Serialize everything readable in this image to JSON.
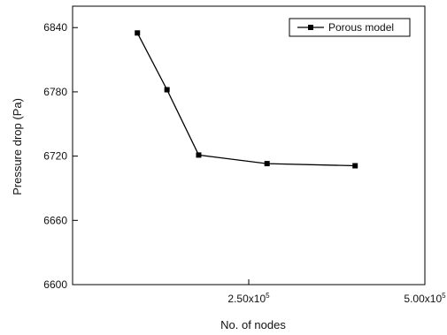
{
  "chart_data": {
    "type": "line",
    "xlabel": "No. of nodes",
    "ylabel": "Pressure drop (Pa)",
    "xlim": [
      0,
      500000
    ],
    "ylim": [
      6600,
      6860
    ],
    "x_ticks": [
      {
        "value": 250000,
        "mantissa": "2.50x10",
        "exp": "5"
      },
      {
        "value": 500000,
        "mantissa": "5.00x10",
        "exp": "5"
      }
    ],
    "y_ticks": [
      {
        "value": 6600,
        "label": "6600"
      },
      {
        "value": 6660,
        "label": "6660"
      },
      {
        "value": 6720,
        "label": "6720"
      },
      {
        "value": 6780,
        "label": "6780"
      },
      {
        "value": 6840,
        "label": "6840"
      }
    ],
    "legend_position": "top-right",
    "grid": false,
    "series": [
      {
        "name": "Porous model",
        "color": "#000000",
        "marker": "square",
        "x": [
          92000,
          134000,
          179000,
          276000,
          401000
        ],
        "y": [
          6835,
          6782,
          6721,
          6713,
          6711
        ]
      }
    ]
  }
}
